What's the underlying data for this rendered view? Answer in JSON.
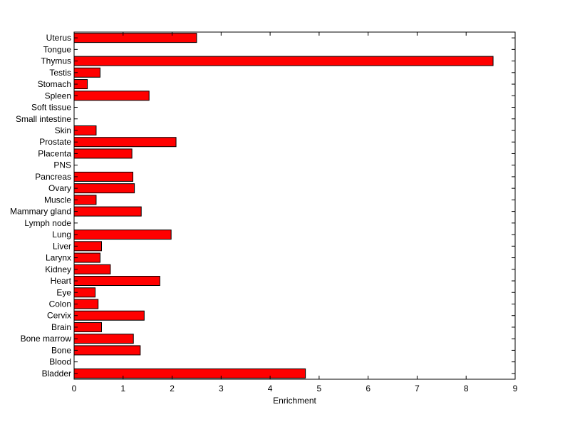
{
  "chart_data": {
    "type": "bar",
    "orientation": "horizontal",
    "categories": [
      "Uterus",
      "Tongue",
      "Thymus",
      "Testis",
      "Stomach",
      "Spleen",
      "Soft tissue",
      "Small intestine",
      "Skin",
      "Prostate",
      "Placenta",
      "PNS",
      "Pancreas",
      "Ovary",
      "Muscle",
      "Mammary gland",
      "Lymph node",
      "Lung",
      "Liver",
      "Larynx",
      "Kidney",
      "Heart",
      "Eye",
      "Colon",
      "Cervix",
      "Brain",
      "Bone marrow",
      "Bone",
      "Blood",
      "Bladder"
    ],
    "values": [
      2.5,
      0,
      8.55,
      0.53,
      0.27,
      1.53,
      0,
      0,
      0.45,
      2.08,
      1.18,
      0,
      1.2,
      1.23,
      0.45,
      1.37,
      0,
      1.98,
      0.56,
      0.53,
      0.74,
      1.75,
      0.43,
      0.49,
      1.43,
      0.56,
      1.21,
      1.35,
      0,
      4.72
    ],
    "xlabel": "Enrichment",
    "ylabel": "",
    "xlim": [
      0,
      9
    ],
    "xticks": [
      0,
      1,
      2,
      3,
      4,
      5,
      6,
      7,
      8,
      9
    ],
    "bar_color": "#ff0000",
    "bar_edge_color": "#000000",
    "grid": false
  }
}
